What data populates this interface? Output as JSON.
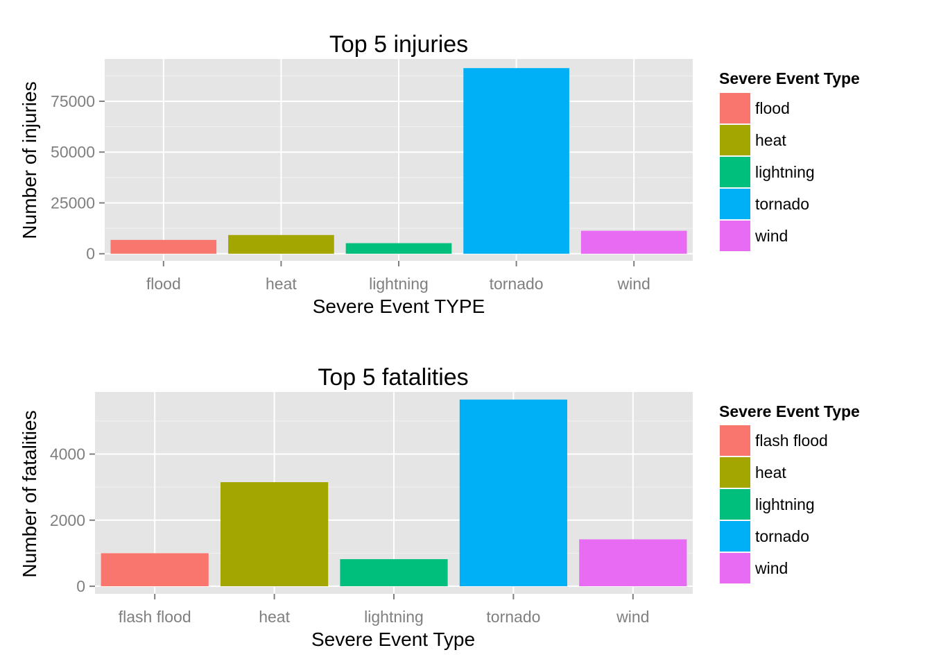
{
  "chart_data": [
    {
      "type": "bar",
      "title": "Top 5 injuries",
      "xlabel": "Severe Event TYPE",
      "ylabel": "Number of injuries",
      "categories": [
        "flood",
        "heat",
        "lightning",
        "tornado",
        "wind"
      ],
      "values": [
        6800,
        9200,
        5200,
        91300,
        11300
      ],
      "ylim": [
        -3500,
        95800
      ],
      "yticks": [
        0,
        25000,
        50000,
        75000
      ],
      "ytick_labels": [
        "0",
        "25000",
        "50000",
        "75000"
      ],
      "colors": [
        "#F8766D",
        "#A3A500",
        "#00BF7D",
        "#00B0F6",
        "#E76BF3"
      ],
      "grid": true,
      "legend": {
        "title": "Severe Event Type",
        "position": "right",
        "items": [
          "flood",
          "heat",
          "lightning",
          "tornado",
          "wind"
        ]
      }
    },
    {
      "type": "bar",
      "title": "Top 5 fatalities",
      "xlabel": "Severe Event Type",
      "ylabel": "Number of fatalities",
      "categories": [
        "flash flood",
        "heat",
        "lightning",
        "tornado",
        "wind"
      ],
      "values": [
        1000,
        3150,
        820,
        5650,
        1420
      ],
      "ylim": [
        -230,
        5880
      ],
      "yticks": [
        0,
        2000,
        4000
      ],
      "ytick_labels": [
        "0",
        "2000",
        "4000"
      ],
      "colors": [
        "#F8766D",
        "#A3A500",
        "#00BF7D",
        "#00B0F6",
        "#E76BF3"
      ],
      "grid": true,
      "legend": {
        "title": "Severe Event Type",
        "position": "right",
        "items": [
          "flash flood",
          "heat",
          "lightning",
          "tornado",
          "wind"
        ]
      }
    }
  ]
}
